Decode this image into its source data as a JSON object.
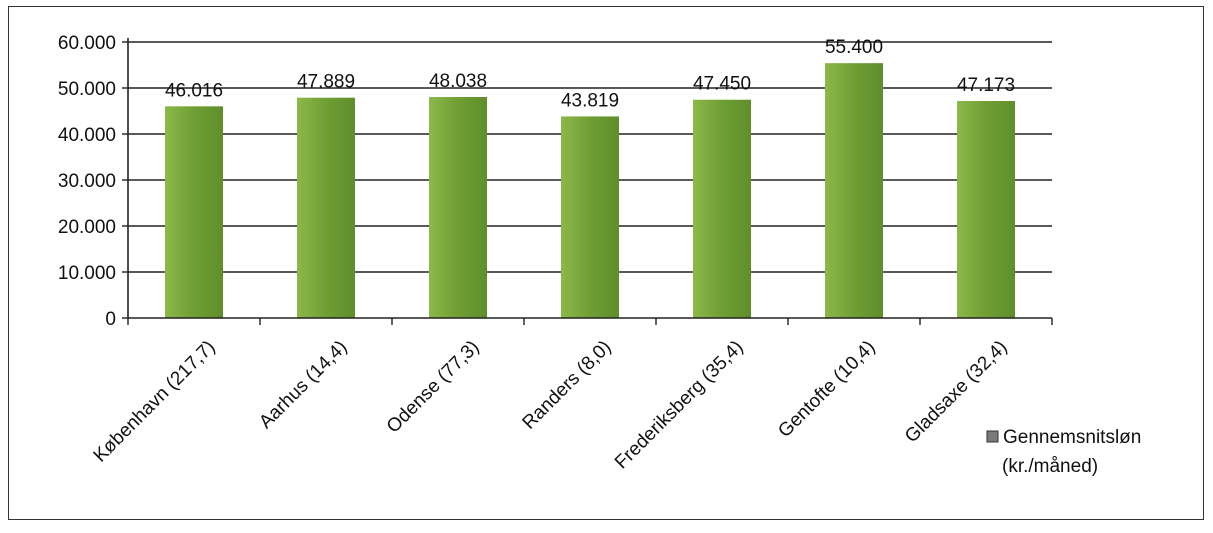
{
  "chart_data": {
    "type": "bar",
    "categories": [
      "København (217,7)",
      "Aarhus (14,4)",
      "Odense (77,3)",
      "Randers (8,0)",
      "Frederiksberg (35,4)",
      "Gentofte (10,4)",
      "Gladsaxe (32,4)"
    ],
    "series": [
      {
        "name": "Gennemsnitsløn (kr./måned)",
        "legend_lines": [
          "Gennemsnitsløn",
          "(kr./måned)"
        ],
        "values": [
          46016,
          47889,
          48038,
          43819,
          47450,
          55400,
          47173
        ],
        "value_labels": [
          "46.016",
          "47.889",
          "48.038",
          "43.819",
          "47.450",
          "55.400",
          "47.173"
        ],
        "color": "#79a53a"
      }
    ],
    "ylim": [
      0,
      60000
    ],
    "yticks": [
      0,
      10000,
      20000,
      30000,
      40000,
      50000,
      60000
    ],
    "ytick_labels": [
      "0",
      "10.000",
      "20.000",
      "30.000",
      "40.000",
      "50.000",
      "60.000"
    ],
    "grid": true,
    "legend_position": "right"
  }
}
